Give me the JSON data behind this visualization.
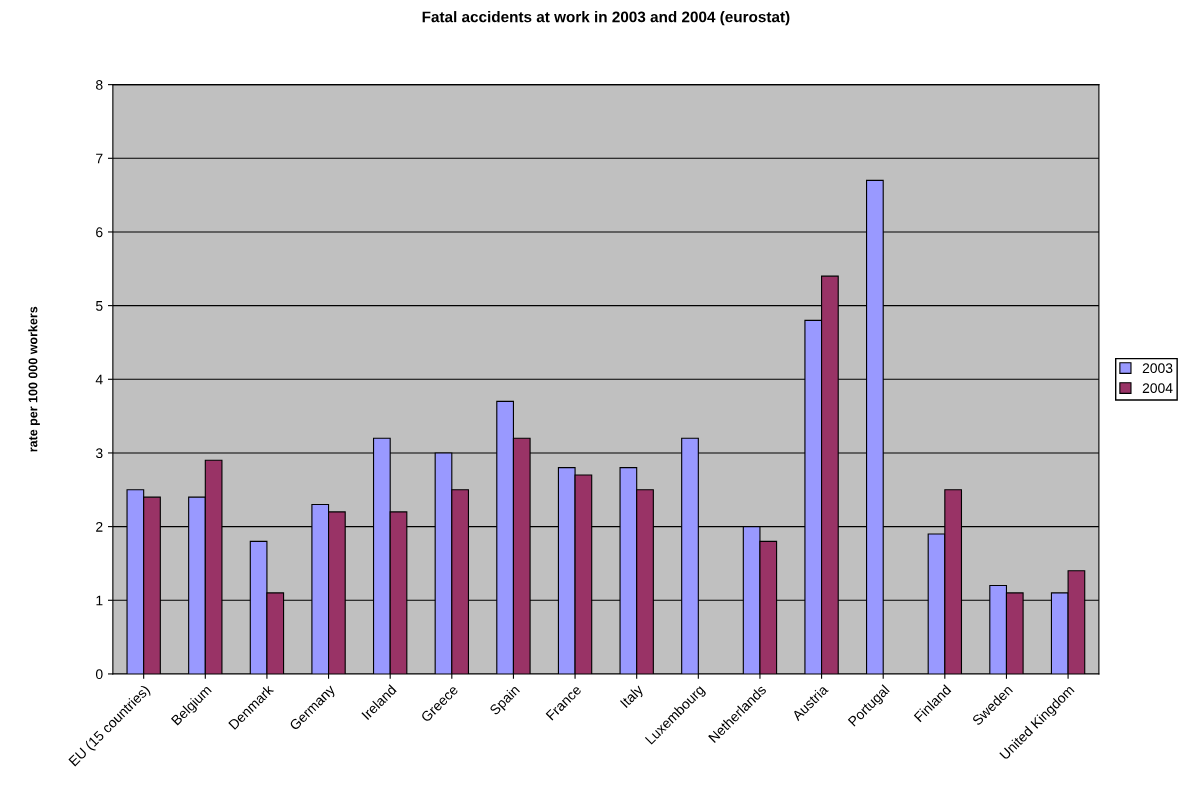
{
  "chart_data": {
    "type": "bar",
    "title": "Fatal accidents at work in 2003 and 2004 (eurostat)",
    "ylabel": "rate per 100 000 workers",
    "categories": [
      "EU (15 countries)",
      "Belgium",
      "Denmark",
      "Germany",
      "Ireland",
      "Greece",
      "Spain",
      "France",
      "Italy",
      "Luxembourg",
      "Netherlands",
      "Austria",
      "Portugal",
      "Finland",
      "Sweden",
      "United Kingdom"
    ],
    "series": [
      {
        "name": "2003",
        "color": "#9999ff",
        "values": [
          2.5,
          2.4,
          1.8,
          2.3,
          3.2,
          3.0,
          3.7,
          2.8,
          2.8,
          3.2,
          2.0,
          4.8,
          6.7,
          1.9,
          1.2,
          1.1
        ]
      },
      {
        "name": "2004",
        "color": "#993366",
        "values": [
          2.4,
          2.9,
          1.1,
          2.2,
          2.2,
          2.5,
          3.2,
          2.7,
          2.5,
          null,
          1.8,
          5.4,
          null,
          2.5,
          1.1,
          1.4
        ]
      }
    ],
    "ylim": [
      0,
      8
    ],
    "yticks": [
      0,
      1,
      2,
      3,
      4,
      5,
      6,
      7,
      8
    ],
    "grid": "y",
    "legend": "right"
  }
}
